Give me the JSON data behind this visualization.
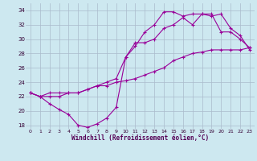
{
  "xlabel": "Windchill (Refroidissement éolien,°C)",
  "bg_color": "#cde8f0",
  "grid_color": "#aabbcc",
  "line_color": "#990099",
  "xlim": [
    -0.5,
    23.5
  ],
  "ylim": [
    17.5,
    35.0
  ],
  "xticks": [
    0,
    1,
    2,
    3,
    4,
    5,
    6,
    7,
    8,
    9,
    10,
    11,
    12,
    13,
    14,
    15,
    16,
    17,
    18,
    19,
    20,
    21,
    22,
    23
  ],
  "yticks": [
    18,
    20,
    22,
    24,
    26,
    28,
    30,
    32,
    34
  ],
  "line1_x": [
    0,
    1,
    2,
    3,
    4,
    5,
    6,
    7,
    8,
    9,
    10,
    11,
    12,
    13,
    14,
    15,
    16,
    17,
    18,
    19,
    20,
    21,
    22,
    23
  ],
  "line1_y": [
    22.5,
    22.0,
    21.0,
    20.2,
    19.5,
    18.0,
    17.7,
    18.2,
    19.0,
    20.5,
    27.5,
    29.0,
    31.0,
    32.0,
    33.8,
    33.8,
    33.2,
    33.5,
    33.5,
    33.2,
    33.5,
    31.5,
    30.5,
    28.5
  ],
  "line2_x": [
    0,
    1,
    2,
    3,
    4,
    5,
    6,
    7,
    8,
    9,
    10,
    11,
    12,
    13,
    14,
    15,
    16,
    17,
    18,
    19,
    20,
    21,
    22,
    23
  ],
  "line2_y": [
    22.5,
    22.0,
    22.5,
    22.5,
    22.5,
    22.5,
    23.0,
    23.5,
    24.0,
    24.5,
    27.5,
    29.5,
    29.5,
    30.0,
    31.5,
    32.0,
    33.0,
    32.0,
    33.5,
    33.5,
    31.0,
    31.0,
    30.0,
    28.8
  ],
  "line3_x": [
    0,
    1,
    2,
    3,
    4,
    5,
    6,
    7,
    8,
    9,
    10,
    11,
    12,
    13,
    14,
    15,
    16,
    17,
    18,
    19,
    20,
    21,
    22,
    23
  ],
  "line3_y": [
    22.5,
    22.0,
    22.0,
    22.0,
    22.5,
    22.5,
    23.0,
    23.5,
    23.5,
    24.0,
    24.2,
    24.5,
    25.0,
    25.5,
    26.0,
    27.0,
    27.5,
    28.0,
    28.2,
    28.5,
    28.5,
    28.5,
    28.5,
    28.8
  ],
  "marker": "+",
  "marker_size": 3,
  "linewidth": 0.8
}
